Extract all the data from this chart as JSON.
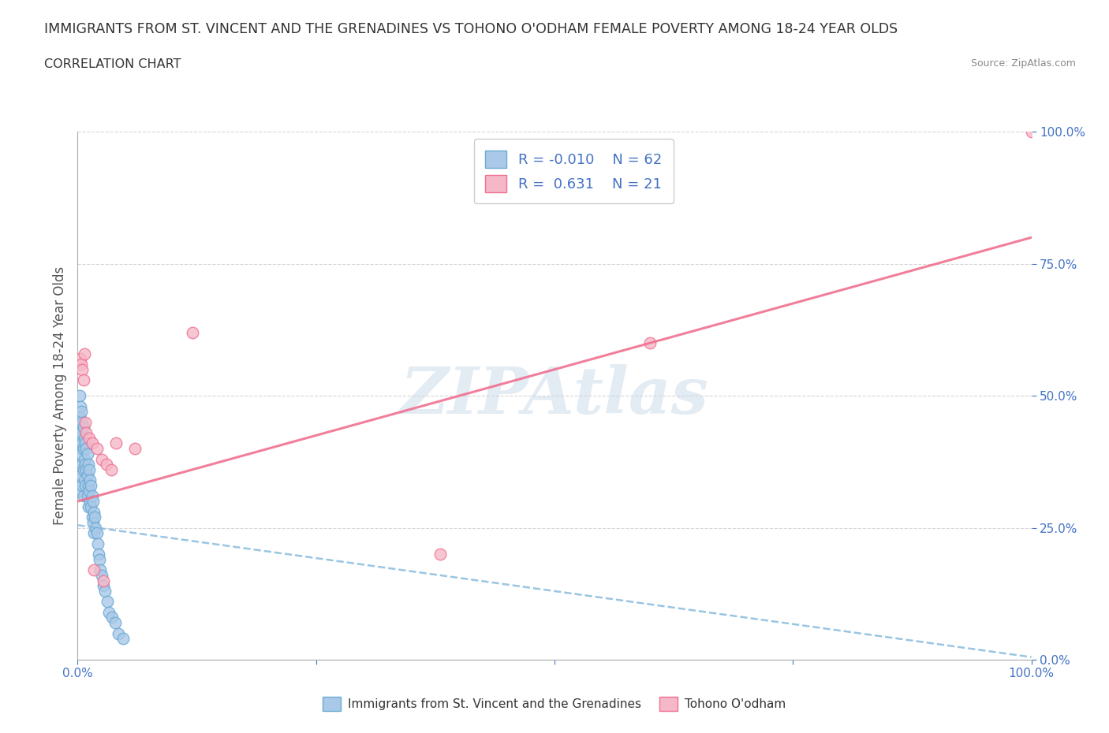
{
  "title": "IMMIGRANTS FROM ST. VINCENT AND THE GRENADINES VS TOHONO O'ODHAM FEMALE POVERTY AMONG 18-24 YEAR OLDS",
  "subtitle": "CORRELATION CHART",
  "source": "Source: ZipAtlas.com",
  "xlabel_label": "Immigrants from St. Vincent and the Grenadines",
  "ylabel_label": "Female Poverty Among 18-24 Year Olds",
  "x_tick_positions": [
    0,
    0.25,
    0.5,
    0.75,
    1.0
  ],
  "x_tick_labels_bottom": [
    "0.0%",
    "",
    "",
    "",
    "100.0%"
  ],
  "y_tick_positions": [
    0,
    0.25,
    0.5,
    0.75,
    1.0
  ],
  "y_tick_labels_right": [
    "0.0%",
    "25.0%",
    "50.0%",
    "75.0%",
    "100.0%"
  ],
  "blue_color": "#aac9e8",
  "pink_color": "#f5b8c8",
  "blue_edge_color": "#6aaad4",
  "pink_edge_color": "#f07090",
  "blue_line_color": "#88bbdd",
  "pink_line_color": "#f07090",
  "blue_scatter_x": [
    0.002,
    0.002,
    0.002,
    0.003,
    0.003,
    0.003,
    0.003,
    0.003,
    0.004,
    0.004,
    0.004,
    0.004,
    0.005,
    0.005,
    0.005,
    0.005,
    0.006,
    0.006,
    0.006,
    0.006,
    0.007,
    0.007,
    0.007,
    0.008,
    0.008,
    0.008,
    0.009,
    0.009,
    0.01,
    0.01,
    0.01,
    0.011,
    0.011,
    0.011,
    0.012,
    0.012,
    0.013,
    0.013,
    0.014,
    0.014,
    0.015,
    0.015,
    0.016,
    0.016,
    0.017,
    0.017,
    0.018,
    0.019,
    0.02,
    0.021,
    0.022,
    0.023,
    0.024,
    0.025,
    0.027,
    0.029,
    0.031,
    0.033,
    0.036,
    0.039,
    0.043,
    0.048
  ],
  "blue_scatter_y": [
    0.5,
    0.46,
    0.42,
    0.48,
    0.44,
    0.4,
    0.36,
    0.32,
    0.47,
    0.43,
    0.39,
    0.35,
    0.45,
    0.41,
    0.37,
    0.33,
    0.44,
    0.4,
    0.36,
    0.31,
    0.42,
    0.38,
    0.34,
    0.41,
    0.37,
    0.33,
    0.4,
    0.36,
    0.39,
    0.35,
    0.31,
    0.37,
    0.33,
    0.29,
    0.36,
    0.32,
    0.34,
    0.3,
    0.33,
    0.29,
    0.31,
    0.27,
    0.3,
    0.26,
    0.28,
    0.24,
    0.27,
    0.25,
    0.24,
    0.22,
    0.2,
    0.19,
    0.17,
    0.16,
    0.14,
    0.13,
    0.11,
    0.09,
    0.08,
    0.07,
    0.05,
    0.04
  ],
  "pink_scatter_x": [
    0.003,
    0.004,
    0.005,
    0.006,
    0.007,
    0.008,
    0.009,
    0.012,
    0.015,
    0.017,
    0.02,
    0.025,
    0.027,
    0.03,
    0.035,
    0.04,
    0.06,
    0.12,
    0.38,
    0.6,
    1.0
  ],
  "pink_scatter_y": [
    0.57,
    0.56,
    0.55,
    0.53,
    0.58,
    0.45,
    0.43,
    0.42,
    0.41,
    0.17,
    0.4,
    0.38,
    0.15,
    0.37,
    0.36,
    0.41,
    0.4,
    0.62,
    0.2,
    0.6,
    1.0
  ],
  "blue_trend_x": [
    0.0,
    1.0
  ],
  "blue_trend_y": [
    0.255,
    0.005
  ],
  "pink_trend_x": [
    0.0,
    1.0
  ],
  "pink_trend_y": [
    0.3,
    0.8
  ],
  "watermark_text": "ZIPAtlas",
  "watermark_color": "#c8d8e8",
  "bg_color": "#ffffff",
  "grid_color": "#cccccc",
  "tick_color": "#4472c4",
  "label_color": "#555555",
  "title_color": "#333333"
}
